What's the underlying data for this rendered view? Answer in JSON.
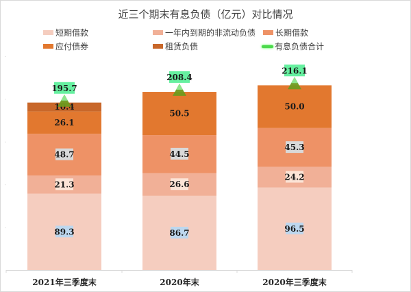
{
  "chart_data": {
    "type": "bar",
    "stacked": true,
    "title": "近三个期末有息负债（亿元）对比情况",
    "categories": [
      "2021年三季度末",
      "2020年末",
      "2020年三季度末"
    ],
    "series": [
      {
        "name": "短期借款",
        "values": [
          89.3,
          86.7,
          96.5
        ],
        "color": "#f5cdbf",
        "label_bg": "#bdd7ee"
      },
      {
        "name": "一年内到期的非流动负债",
        "values": [
          21.3,
          26.6,
          24.2
        ],
        "color": "#f1b097",
        "label_bg": "#fce4d6"
      },
      {
        "name": "长期借款",
        "values": [
          48.7,
          44.5,
          45.3
        ],
        "color": "#ee9266",
        "label_bg": "#d9d9d9"
      },
      {
        "name": "应付债券",
        "values": [
          26.1,
          50.5,
          50.0
        ],
        "color": "#e2782f",
        "label_bg": ""
      },
      {
        "name": "租赁负债",
        "values": [
          10.4,
          null,
          null
        ],
        "color": "#c8672a",
        "label_bg": ""
      }
    ],
    "total_series": {
      "name": "有息负债合计",
      "values": [
        195.7,
        208.4,
        216.1
      ],
      "color": "#4cd94c",
      "label_bg": "#66f0a0",
      "marker": "triangle",
      "marker_color": "#6f9a1f"
    },
    "ylim": [
      0,
      250
    ],
    "grid": false,
    "legend": "top",
    "xlabel": "",
    "ylabel": ""
  }
}
